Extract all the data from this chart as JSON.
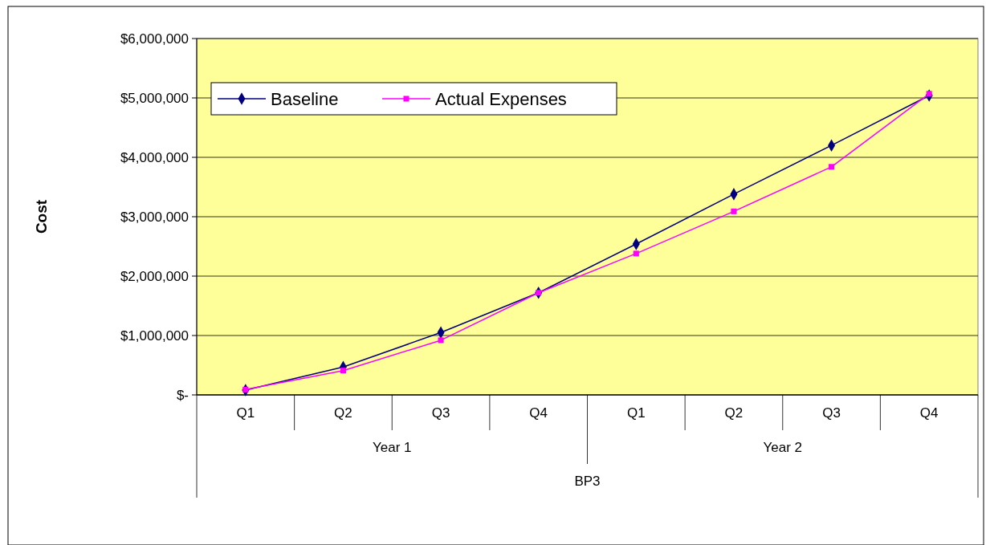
{
  "chart_data": {
    "type": "line",
    "ylabel": "Cost",
    "xlabel": "BP3",
    "categories": [
      "Q1",
      "Q2",
      "Q3",
      "Q4",
      "Q1",
      "Q2",
      "Q3",
      "Q4"
    ],
    "annotations": [
      "Year 1",
      "Year 2"
    ],
    "series": [
      {
        "name": "Baseline",
        "color": "#000080",
        "marker": "diamond",
        "values": [
          80000,
          470000,
          1050000,
          1720000,
          2540000,
          3380000,
          4200000,
          5040000
        ]
      },
      {
        "name": "Actual Expenses",
        "color": "#ff00ff",
        "marker": "square",
        "values": [
          90000,
          410000,
          920000,
          1720000,
          2380000,
          3090000,
          3840000,
          5070000
        ]
      }
    ],
    "ylim": [
      0,
      6000000
    ],
    "yticks": [
      {
        "value": 0,
        "label": "$-"
      },
      {
        "value": 1000000,
        "label": "$1,000,000"
      },
      {
        "value": 2000000,
        "label": "$2,000,000"
      },
      {
        "value": 3000000,
        "label": "$3,000,000"
      },
      {
        "value": 4000000,
        "label": "$4,000,000"
      },
      {
        "value": 5000000,
        "label": "$5,000,000"
      },
      {
        "value": 6000000,
        "label": "$6,000,000"
      }
    ],
    "grid": "y",
    "legend": "top left"
  }
}
